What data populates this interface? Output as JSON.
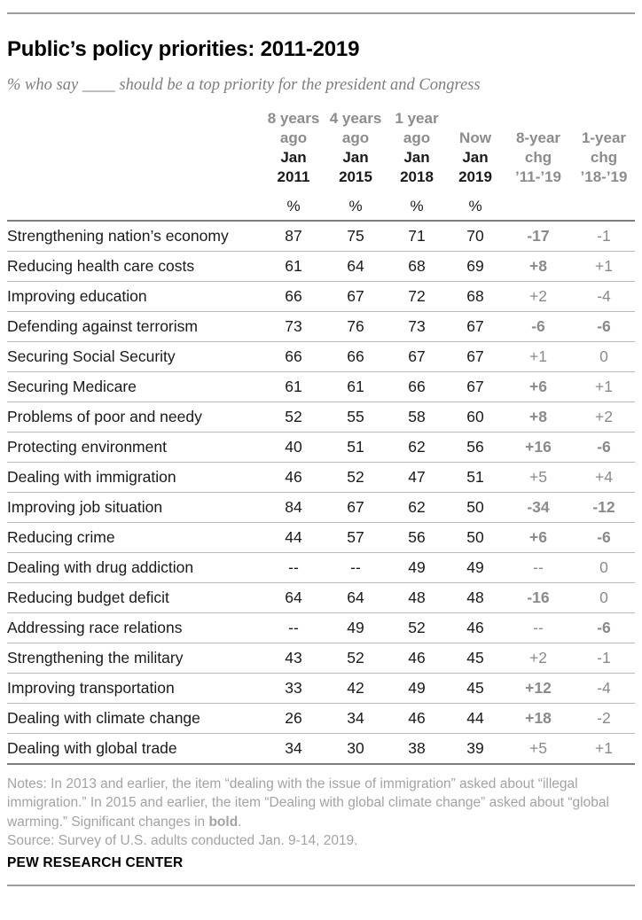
{
  "page": {
    "title": "Public’s policy priorities: 2011-2019",
    "subtitle": "% who say ____ should be a top priority for the president and Congress"
  },
  "chart_data": {
    "type": "table",
    "title": "Public’s policy priorities: 2011-2019",
    "subtitle": "% who say ____ should be a top priority for the president and Congress",
    "columns": [
      {
        "period": "8 years",
        "period2": "ago",
        "month": "Jan",
        "year": "2011",
        "unit": "%",
        "kind": "year"
      },
      {
        "period": "4 years",
        "period2": "ago",
        "month": "Jan",
        "year": "2015",
        "unit": "%",
        "kind": "year"
      },
      {
        "period": "1 year",
        "period2": "ago",
        "month": "Jan",
        "year": "2018",
        "unit": "%",
        "kind": "year"
      },
      {
        "period": "",
        "period2": "Now",
        "month": "Jan",
        "year": "2019",
        "unit": "%",
        "kind": "year"
      },
      {
        "period": "",
        "period2": "8-year",
        "month": "chg",
        "year": "’11-’19",
        "unit": "",
        "kind": "chg"
      },
      {
        "period": "",
        "period2": "1-year",
        "month": "chg",
        "year": "’18-’19",
        "unit": "",
        "kind": "chg"
      }
    ],
    "rows": [
      {
        "label": "Strengthening nation’s economy",
        "v1": "87",
        "v2": "75",
        "v3": "71",
        "v4": "70",
        "c8": {
          "text": "-17",
          "bold": true
        },
        "c1": {
          "text": "-1",
          "bold": false
        }
      },
      {
        "label": "Reducing health care costs",
        "v1": "61",
        "v2": "64",
        "v3": "68",
        "v4": "69",
        "c8": {
          "text": "+8",
          "bold": true
        },
        "c1": {
          "text": "+1",
          "bold": false
        }
      },
      {
        "label": "Improving education",
        "v1": "66",
        "v2": "67",
        "v3": "72",
        "v4": "68",
        "c8": {
          "text": "+2",
          "bold": false
        },
        "c1": {
          "text": "-4",
          "bold": false
        }
      },
      {
        "label": "Defending against terrorism",
        "v1": "73",
        "v2": "76",
        "v3": "73",
        "v4": "67",
        "c8": {
          "text": "-6",
          "bold": true
        },
        "c1": {
          "text": "-6",
          "bold": true
        }
      },
      {
        "label": "Securing Social Security",
        "v1": "66",
        "v2": "66",
        "v3": "67",
        "v4": "67",
        "c8": {
          "text": "+1",
          "bold": false
        },
        "c1": {
          "text": "0",
          "bold": false
        }
      },
      {
        "label": "Securing Medicare",
        "v1": "61",
        "v2": "61",
        "v3": "66",
        "v4": "67",
        "c8": {
          "text": "+6",
          "bold": true
        },
        "c1": {
          "text": "+1",
          "bold": false
        }
      },
      {
        "label": "Problems of poor and needy",
        "v1": "52",
        "v2": "55",
        "v3": "58",
        "v4": "60",
        "c8": {
          "text": "+8",
          "bold": true
        },
        "c1": {
          "text": "+2",
          "bold": false
        }
      },
      {
        "label": "Protecting environment",
        "v1": "40",
        "v2": "51",
        "v3": "62",
        "v4": "56",
        "c8": {
          "text": "+16",
          "bold": true
        },
        "c1": {
          "text": "-6",
          "bold": true
        }
      },
      {
        "label": "Dealing with immigration",
        "v1": "46",
        "v2": "52",
        "v3": "47",
        "v4": "51",
        "c8": {
          "text": "+5",
          "bold": false
        },
        "c1": {
          "text": "+4",
          "bold": false
        }
      },
      {
        "label": "Improving job situation",
        "v1": "84",
        "v2": "67",
        "v3": "62",
        "v4": "50",
        "c8": {
          "text": "-34",
          "bold": true
        },
        "c1": {
          "text": "-12",
          "bold": true
        }
      },
      {
        "label": "Reducing crime",
        "v1": "44",
        "v2": "57",
        "v3": "56",
        "v4": "50",
        "c8": {
          "text": "+6",
          "bold": true
        },
        "c1": {
          "text": "-6",
          "bold": true
        }
      },
      {
        "label": "Dealing with drug addiction",
        "v1": "--",
        "v2": "--",
        "v3": "49",
        "v4": "49",
        "c8": {
          "text": "--",
          "bold": false
        },
        "c1": {
          "text": "0",
          "bold": false
        }
      },
      {
        "label": "Reducing budget deficit",
        "v1": "64",
        "v2": "64",
        "v3": "48",
        "v4": "48",
        "c8": {
          "text": "-16",
          "bold": true
        },
        "c1": {
          "text": "0",
          "bold": false
        }
      },
      {
        "label": "Addressing race relations",
        "v1": "--",
        "v2": "49",
        "v3": "52",
        "v4": "46",
        "c8": {
          "text": "--",
          "bold": false
        },
        "c1": {
          "text": "-6",
          "bold": true
        }
      },
      {
        "label": "Strengthening the military",
        "v1": "43",
        "v2": "52",
        "v3": "46",
        "v4": "45",
        "c8": {
          "text": "+2",
          "bold": false
        },
        "c1": {
          "text": "-1",
          "bold": false
        }
      },
      {
        "label": "Improving transportation",
        "v1": "33",
        "v2": "42",
        "v3": "49",
        "v4": "45",
        "c8": {
          "text": "+12",
          "bold": true
        },
        "c1": {
          "text": "-4",
          "bold": false
        }
      },
      {
        "label": "Dealing with climate change",
        "v1": "26",
        "v2": "34",
        "v3": "46",
        "v4": "44",
        "c8": {
          "text": "+18",
          "bold": true
        },
        "c1": {
          "text": "-2",
          "bold": false
        }
      },
      {
        "label": "Dealing with global trade",
        "v1": "34",
        "v2": "30",
        "v3": "38",
        "v4": "39",
        "c8": {
          "text": "+5",
          "bold": false
        },
        "c1": {
          "text": "+1",
          "bold": false
        }
      }
    ]
  },
  "footer": {
    "notes_prefix": "Notes: In 2013 and earlier, the item “dealing with the issue of immigration” asked about “illegal immigration.” In 2015 and earlier, the item “Dealing with global climate change” asked about “global warming.” Significant changes in ",
    "notes_bold": "bold",
    "notes_suffix": ".",
    "source": "Source: Survey of U.S. adults conducted Jan. 9-14, 2019.",
    "brand": "PEW RESEARCH CENTER"
  },
  "colors": {
    "text_black": "#1a1a1a",
    "gray_values": "#8a8a8a",
    "notes_gray": "#a3a3a3",
    "rule_gray": "#9c9c9c"
  }
}
